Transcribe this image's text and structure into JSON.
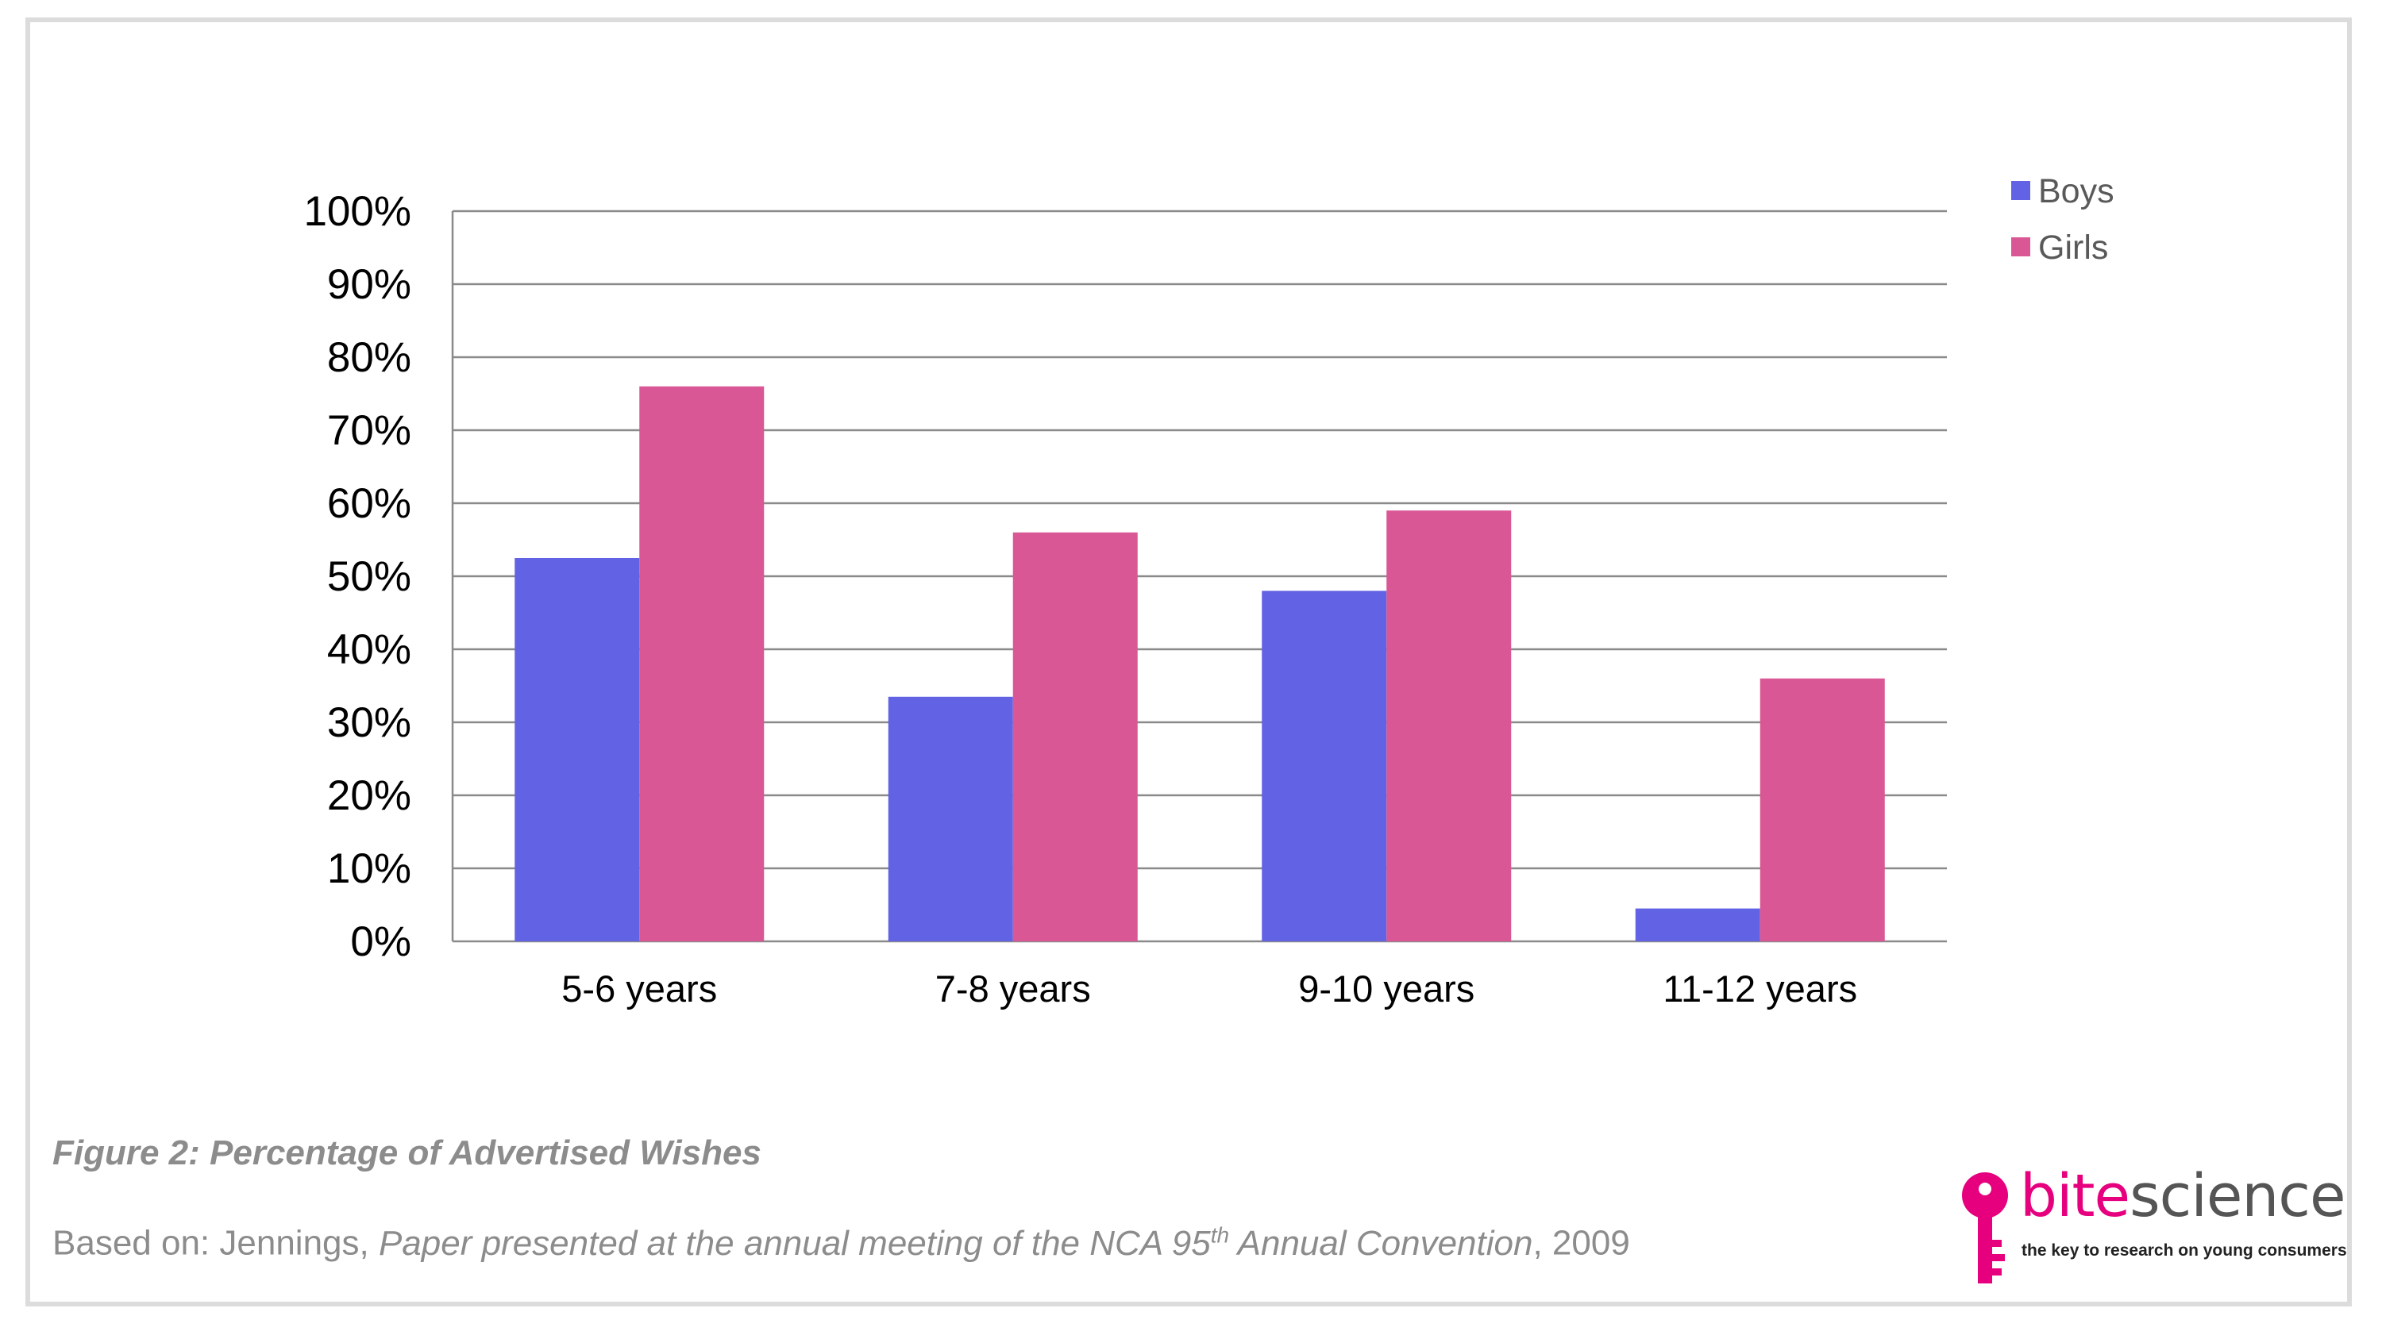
{
  "chart_data": {
    "type": "bar",
    "categories": [
      "5-6 years",
      "7-8 years",
      "9-10 years",
      "11-12 years"
    ],
    "series": [
      {
        "name": "Boys",
        "color": "#6262e4",
        "values": [
          52.5,
          33.5,
          48,
          4.5
        ]
      },
      {
        "name": "Girls",
        "color": "#da5795",
        "values": [
          76,
          56,
          59,
          36
        ]
      }
    ],
    "ylim": [
      0,
      100
    ],
    "yticks": [
      "0%",
      "10%",
      "20%",
      "30%",
      "40%",
      "50%",
      "60%",
      "70%",
      "80%",
      "90%",
      "100%"
    ],
    "grid": true,
    "legend_position": "top-right",
    "xlabel": "",
    "ylabel": ""
  },
  "caption": "Figure 2: Percentage of Advertised Wishes",
  "source": {
    "prefix": "Based on: Jennings, ",
    "title_pre": "Paper presented at the annual meeting of the NCA 95",
    "title_sup": "th",
    "title_post": " Annual Convention",
    "suffix": ", 2009"
  },
  "logo": {
    "icon": "key-icon",
    "brand_bite": "bite",
    "brand_science": "science",
    "tagline": "the key to research on young consumers",
    "color": "#e6007e"
  }
}
